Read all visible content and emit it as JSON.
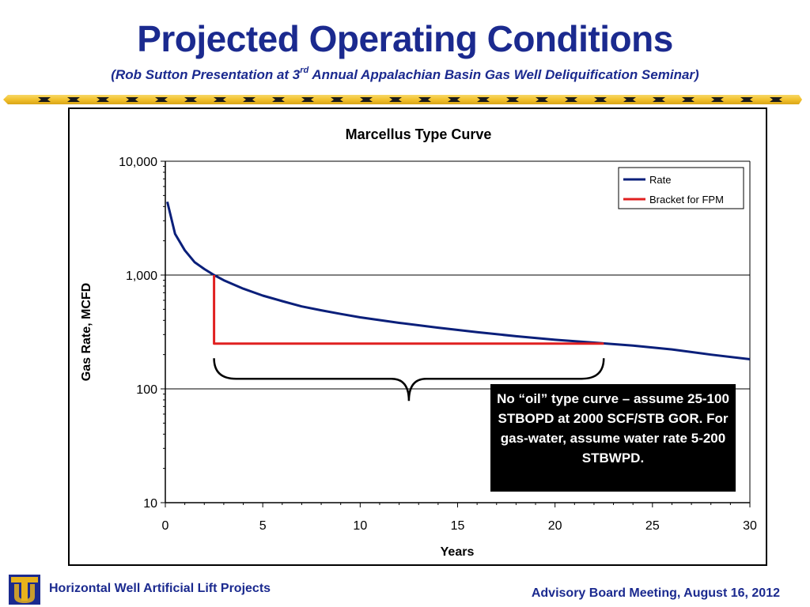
{
  "slide": {
    "title": "Projected Operating Conditions",
    "subtitle_pre": "(Rob Sutton Presentation at 3",
    "subtitle_sup": "rd",
    "subtitle_post": " Annual Appalachian Basin Gas Well Deliquification Seminar)",
    "footer_left": "Horizontal Well Artificial Lift Projects",
    "footer_right": "Advisory Board Meeting, August 16, 2012",
    "logo_icon": "tu-logo-icon",
    "colors": {
      "title": "#1b2a8f",
      "band_yellow": "#f2c12e",
      "logo_gold": "#e7b21c",
      "logo_navy": "#1b2a8f"
    }
  },
  "callout": {
    "text": "No “oil” type curve – assume 25-100 STBOPD at 2000 SCF/STB GOR. For gas-water, assume water rate 5-200 STBWPD."
  },
  "chart_data": {
    "type": "line",
    "title": "Marcellus Type Curve",
    "xlabel": "Years",
    "ylabel": "Gas Rate, MCFD",
    "xlim": [
      0,
      30
    ],
    "ylim": [
      10,
      10000
    ],
    "yscale": "log",
    "x_ticks": [
      "0",
      "5",
      "10",
      "15",
      "20",
      "25",
      "30"
    ],
    "y_ticks": [
      "10",
      "100",
      "1,000",
      "10,000"
    ],
    "grid": "horizontal-major",
    "legend_position": "top-right",
    "series": [
      {
        "name": "Rate",
        "color": "#0a1f7a",
        "x": [
          0.1,
          0.5,
          1,
          1.5,
          2,
          2.5,
          3,
          4,
          5,
          6,
          7,
          8,
          9,
          10,
          12,
          14,
          16,
          18,
          20,
          22,
          24,
          26,
          28,
          30
        ],
        "y": [
          4400,
          2300,
          1650,
          1300,
          1130,
          1000,
          900,
          760,
          660,
          590,
          530,
          490,
          455,
          425,
          380,
          345,
          315,
          290,
          270,
          255,
          240,
          222,
          200,
          182
        ]
      },
      {
        "name": "Bracket for FPM",
        "color": "#e02020",
        "x": [
          2.5,
          2.5,
          22.5
        ],
        "y": [
          1000,
          250,
          250
        ]
      }
    ],
    "annotations": [
      {
        "type": "brace",
        "x_start": 2.5,
        "x_end": 22.5,
        "y": 180,
        "direction": "down",
        "color": "#000000"
      }
    ]
  }
}
